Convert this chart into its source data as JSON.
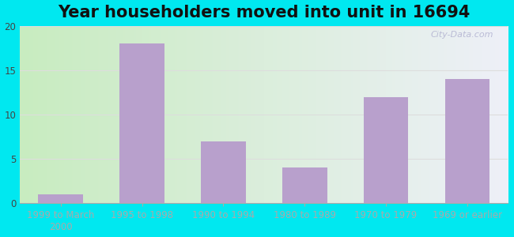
{
  "title": "Year householders moved into unit in 16694",
  "categories": [
    "1999 to March\n2000",
    "1995 to 1998",
    "1990 to 1994",
    "1980 to 1989",
    "1970 to 1979",
    "1969 or earlier"
  ],
  "values": [
    1,
    18,
    7,
    4,
    12,
    14
  ],
  "bar_color": "#b8a0cc",
  "ylim": [
    0,
    20
  ],
  "yticks": [
    0,
    5,
    10,
    15,
    20
  ],
  "background_outer": "#00e8f0",
  "bg_gradient_left": "#c8ecc0",
  "bg_gradient_right": "#eef0f8",
  "title_fontsize": 15,
  "tick_fontsize": 8.5,
  "watermark": "City-Data.com",
  "grid_color": "#dddddd",
  "figsize": [
    6.5,
    3.0
  ],
  "dpi": 100
}
